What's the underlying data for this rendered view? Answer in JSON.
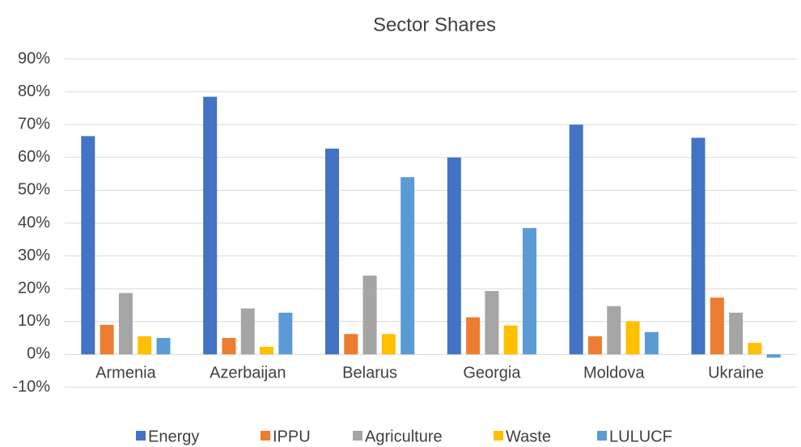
{
  "chart_data": {
    "type": "bar",
    "title": "Sector Shares",
    "categories": [
      "Armenia",
      "Azerbaijan",
      "Belarus",
      "Georgia",
      "Moldova",
      "Ukraine"
    ],
    "series": [
      {
        "name": "Energy",
        "color": "#4472c4",
        "values": [
          66.5,
          78.5,
          62.7,
          60,
          70,
          66
        ]
      },
      {
        "name": "IPPU",
        "color": "#ed7d31",
        "values": [
          9,
          5,
          6.2,
          11.3,
          5.5,
          17.3
        ]
      },
      {
        "name": "Agriculture",
        "color": "#a5a5a5",
        "values": [
          18.7,
          14,
          24,
          19.3,
          14.7,
          12.7
        ]
      },
      {
        "name": "Waste",
        "color": "#ffc000",
        "values": [
          5.5,
          2.3,
          6.2,
          8.8,
          10.1,
          3.5
        ]
      },
      {
        "name": "LULUCF",
        "color": "#5b9bd5",
        "values": [
          5,
          12.7,
          54,
          38.5,
          6.8,
          -1
        ]
      }
    ],
    "ylim": [
      -10,
      90
    ],
    "yticks": [
      {
        "value": -10,
        "label": "-10%"
      },
      {
        "value": 0,
        "label": "0%"
      },
      {
        "value": 10,
        "label": "10%"
      },
      {
        "value": 20,
        "label": "20%"
      },
      {
        "value": 30,
        "label": "30%"
      },
      {
        "value": 40,
        "label": "40%"
      },
      {
        "value": 50,
        "label": "50%"
      },
      {
        "value": 60,
        "label": "60%"
      },
      {
        "value": 70,
        "label": "70%"
      },
      {
        "value": 80,
        "label": "80%"
      },
      {
        "value": 90,
        "label": "90%"
      }
    ],
    "grid": true,
    "legend": "bottom"
  }
}
